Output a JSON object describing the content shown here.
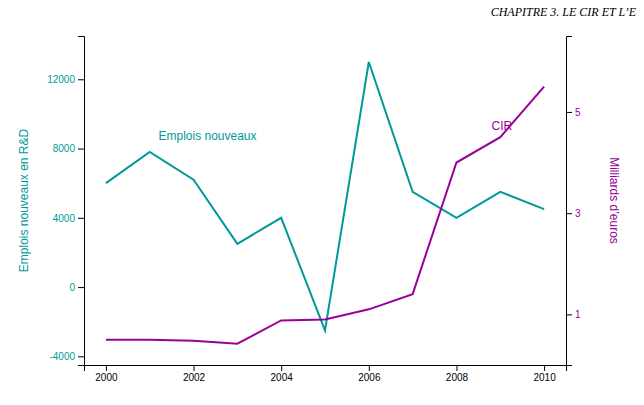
{
  "chart_data": {
    "type": "line",
    "title": "CHAPITRE 3.  LE CIR ET L’E",
    "x": [
      2000,
      2001,
      2002,
      2003,
      2004,
      2005,
      2006,
      2007,
      2008,
      2009,
      2010
    ],
    "xlim": [
      1999.5,
      2010.5
    ],
    "xticks": [
      2000,
      2002,
      2004,
      2006,
      2008,
      2010
    ],
    "ylim": [
      -4500,
      14500
    ],
    "yticks": [
      -4000,
      0,
      4000,
      8000,
      12000
    ],
    "y2lim": [
      0.0,
      6.5
    ],
    "y2ticks": [
      1,
      3,
      5
    ],
    "ylabel": "Emplois nouveaux en R&D",
    "y2label": "Milliards d’euros",
    "series": [
      {
        "color": "#009999",
        "values": [
          6000,
          7800,
          6200,
          2500,
          4000,
          -2500,
          13000,
          5500,
          4000,
          5500,
          4500
        ]
      },
      {
        "color": "#990099",
        "axis": "y2",
        "values": [
          0.5,
          0.5,
          0.48,
          0.42,
          0.88,
          0.9,
          1.1,
          1.4,
          4.0,
          4.5,
          5.5
        ]
      }
    ],
    "annotations": [
      {
        "text": "Emplois nouveaux",
        "x": 2001.2,
        "y": 8500,
        "color": "#009999"
      },
      {
        "text": "CIR",
        "x": 2008.8,
        "y": 4.65,
        "color": "#990099",
        "axis": "y2"
      }
    ]
  }
}
